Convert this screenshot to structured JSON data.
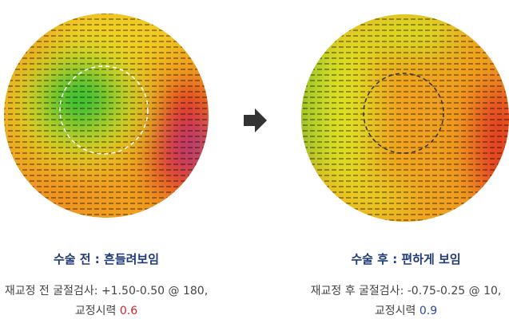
{
  "panels": [
    {
      "title": "수술 전 : 흔들려보임",
      "refraction": "재교정 전 굴절검사: +1.50-0.50 @ 180,",
      "acuity_label": "교정시력",
      "acuity_value": "0.6"
    },
    {
      "title": "수술 후 : 편하게 보임",
      "refraction": "재교정 후 굴절검사: -0.75-0.25 @ 10,",
      "acuity_label": "교정시력",
      "acuity_value": "0.9"
    }
  ]
}
